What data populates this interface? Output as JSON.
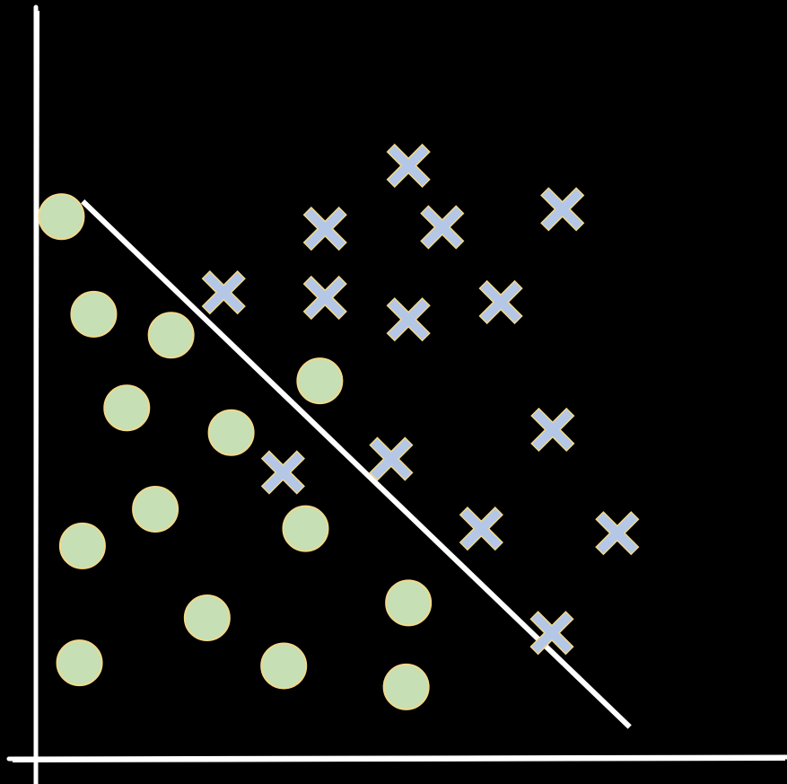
{
  "chart_data": {
    "type": "scatter",
    "title": "",
    "xlabel": "",
    "ylabel": "",
    "grid": false,
    "legend": "none",
    "xlim": [
      0,
      100
    ],
    "ylim": [
      0,
      100
    ],
    "series": [
      {
        "marker": "circle",
        "color": "#c6dfb4",
        "edge_color": "#f2d98b",
        "points": [
          [
            3.4,
            72.3
          ],
          [
            7.7,
            59.3
          ],
          [
            18.0,
            56.5
          ],
          [
            12.1,
            46.8
          ],
          [
            37.8,
            50.4
          ],
          [
            26.0,
            43.5
          ],
          [
            15.9,
            33.3
          ],
          [
            35.9,
            30.7
          ],
          [
            6.2,
            28.4
          ],
          [
            22.8,
            18.8
          ],
          [
            49.6,
            20.8
          ],
          [
            5.8,
            12.8
          ],
          [
            33.0,
            12.4
          ],
          [
            49.3,
            9.6
          ]
        ]
      },
      {
        "marker": "x",
        "color": "#b4c7e7",
        "edge_color": "#f2d98b",
        "points": [
          [
            49.6,
            79.1
          ],
          [
            38.5,
            70.7
          ],
          [
            54.1,
            70.9
          ],
          [
            70.1,
            73.3
          ],
          [
            25.0,
            62.2
          ],
          [
            38.5,
            61.5
          ],
          [
            61.9,
            60.9
          ],
          [
            49.6,
            58.6
          ],
          [
            68.8,
            43.9
          ],
          [
            47.3,
            40.0
          ],
          [
            32.9,
            38.2
          ],
          [
            59.3,
            30.7
          ],
          [
            77.4,
            30.1
          ],
          [
            68.7,
            16.8
          ]
        ]
      }
    ],
    "decision_boundary": {
      "color": "#ffffff",
      "from": [
        6.5,
        74.1
      ],
      "to": [
        78.8,
        4.5
      ]
    },
    "axis_color": "#ffffff"
  }
}
